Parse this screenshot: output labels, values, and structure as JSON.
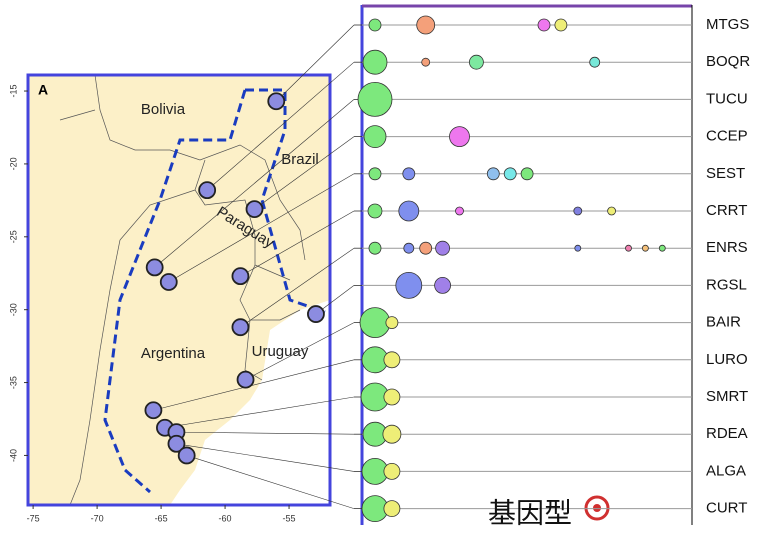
{
  "panel_label": "A",
  "map": {
    "xlim": [
      -75.4,
      -51.8
    ],
    "ylim": [
      -43.4,
      -13.9
    ],
    "xticks": [
      -75,
      -70,
      -65,
      -60,
      -55
    ],
    "yticks": [
      -15,
      -20,
      -25,
      -30,
      -35,
      -40
    ],
    "countries": [
      "Bolivia",
      "Brazil",
      "Paraguay",
      "Argentina",
      "Uruguay"
    ],
    "site_color": "#8c8ce0",
    "frame_color": "#4444dd"
  },
  "rows": [
    {
      "code": "MTGS",
      "lon": -56.0,
      "lat": -15.7,
      "bubbles": [
        {
          "col": 0,
          "size": 6,
          "color": "#7de87d"
        },
        {
          "col": 3,
          "size": 9,
          "color": "#f4a07a"
        },
        {
          "col": 10,
          "size": 6,
          "color": "#ee77ee"
        },
        {
          "col": 11,
          "size": 6,
          "color": "#eeee77"
        }
      ]
    },
    {
      "code": "BOQR",
      "lon": -61.4,
      "lat": -21.8,
      "bubbles": [
        {
          "col": 0,
          "size": 12,
          "color": "#7de87d"
        },
        {
          "col": 3,
          "size": 4,
          "color": "#f4a07a"
        },
        {
          "col": 6,
          "size": 7,
          "color": "#7de8a0"
        },
        {
          "col": 13,
          "size": 5,
          "color": "#77e8d8"
        }
      ]
    },
    {
      "code": "TUCU",
      "lon": -65.5,
      "lat": -27.1,
      "bubbles": [
        {
          "col": 0,
          "size": 17,
          "color": "#7de87d"
        }
      ]
    },
    {
      "code": "CCEP",
      "lon": -57.7,
      "lat": -23.1,
      "bubbles": [
        {
          "col": 0,
          "size": 11,
          "color": "#7de87d"
        },
        {
          "col": 5,
          "size": 10,
          "color": "#ee77ee"
        }
      ]
    },
    {
      "code": "SEST",
      "lon": -64.4,
      "lat": -28.1,
      "bubbles": [
        {
          "col": 0,
          "size": 6,
          "color": "#7de87d"
        },
        {
          "col": 2,
          "size": 6,
          "color": "#7f8fee"
        },
        {
          "col": 7,
          "size": 6,
          "color": "#8fbfee"
        },
        {
          "col": 8,
          "size": 6,
          "color": "#77e8e8"
        },
        {
          "col": 9,
          "size": 6,
          "color": "#7de87d"
        }
      ]
    },
    {
      "code": "CRRT",
      "lon": -58.8,
      "lat": -27.7,
      "bubbles": [
        {
          "col": 0,
          "size": 7,
          "color": "#7de87d"
        },
        {
          "col": 2,
          "size": 10,
          "color": "#7f8fee"
        },
        {
          "col": 5,
          "size": 4,
          "color": "#ee77ee"
        },
        {
          "col": 12,
          "size": 4,
          "color": "#8080e0"
        },
        {
          "col": 14,
          "size": 4,
          "color": "#eeee77"
        }
      ]
    },
    {
      "code": "ENRS",
      "lon": -58.8,
      "lat": -31.2,
      "bubbles": [
        {
          "col": 0,
          "size": 6,
          "color": "#7de87d"
        },
        {
          "col": 2,
          "size": 5,
          "color": "#7f8fee"
        },
        {
          "col": 3,
          "size": 6,
          "color": "#f4a07a"
        },
        {
          "col": 4,
          "size": 7,
          "color": "#a080e8"
        },
        {
          "col": 12,
          "size": 3,
          "color": "#7f8fee"
        },
        {
          "col": 15,
          "size": 3,
          "color": "#f080b0"
        },
        {
          "col": 16,
          "size": 3,
          "color": "#f4c07a"
        },
        {
          "col": 17,
          "size": 3,
          "color": "#7de87d"
        }
      ]
    },
    {
      "code": "RGSL",
      "lon": -52.9,
      "lat": -30.3,
      "bubbles": [
        {
          "col": 2,
          "size": 13,
          "color": "#7f8fee"
        },
        {
          "col": 4,
          "size": 8,
          "color": "#a080e8"
        }
      ]
    },
    {
      "code": "BAIR",
      "lon": -58.4,
      "lat": -34.8,
      "bubbles": [
        {
          "col": 0,
          "size": 15,
          "color": "#7de87d"
        },
        {
          "col": 1,
          "size": 6,
          "color": "#eeee77"
        }
      ]
    },
    {
      "code": "LURO",
      "lon": -65.6,
      "lat": -36.9,
      "bubbles": [
        {
          "col": 0,
          "size": 13,
          "color": "#7de87d"
        },
        {
          "col": 1,
          "size": 8,
          "color": "#eeee77"
        }
      ]
    },
    {
      "code": "SMRT",
      "lon": -64.7,
      "lat": -38.1,
      "bubbles": [
        {
          "col": 0,
          "size": 14,
          "color": "#7de87d"
        },
        {
          "col": 1,
          "size": 8,
          "color": "#eeee77"
        }
      ]
    },
    {
      "code": "RDEA",
      "lon": -63.8,
      "lat": -38.4,
      "bubbles": [
        {
          "col": 0,
          "size": 12,
          "color": "#7de87d"
        },
        {
          "col": 1,
          "size": 9,
          "color": "#eeee77"
        }
      ]
    },
    {
      "code": "ALGA",
      "lon": -63.8,
      "lat": -39.2,
      "bubbles": [
        {
          "col": 0,
          "size": 13,
          "color": "#7de87d"
        },
        {
          "col": 1,
          "size": 8,
          "color": "#eeee77"
        }
      ]
    },
    {
      "code": "CURT",
      "lon": -63.0,
      "lat": -40.0,
      "bubbles": [
        {
          "col": 0,
          "size": 13,
          "color": "#7de87d"
        },
        {
          "col": 1,
          "size": 8,
          "color": "#eeee77"
        }
      ]
    }
  ],
  "watermark": "基因型"
}
